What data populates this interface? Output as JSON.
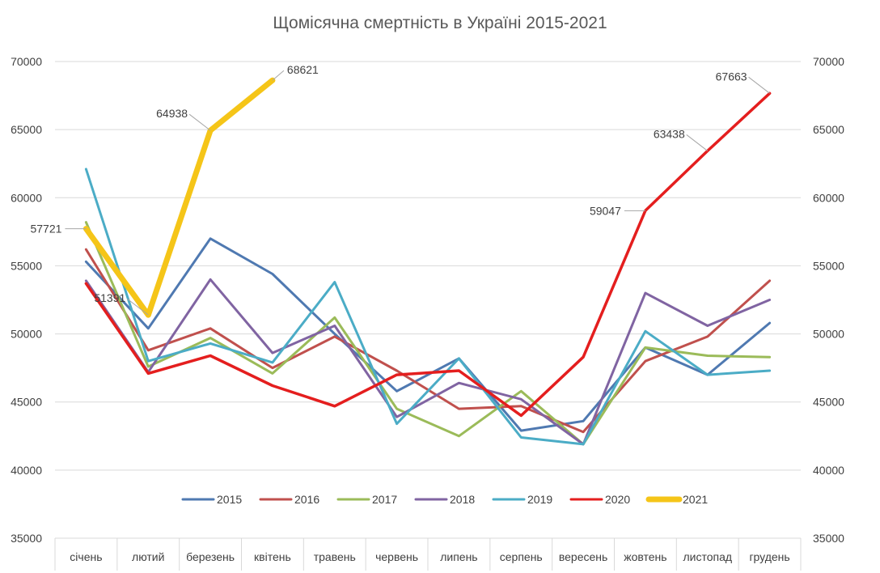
{
  "chart_data": {
    "type": "line",
    "title": "Щомісячна смертність в Україні 2015-2021",
    "categories": [
      "січень",
      "лютий",
      "березень",
      "квітень",
      "травень",
      "червень",
      "липень",
      "серпень",
      "вересень",
      "жовтень",
      "листопад",
      "грудень"
    ],
    "ylim": [
      35000,
      70000
    ],
    "yticks": [
      35000,
      40000,
      45000,
      50000,
      55000,
      60000,
      65000,
      70000
    ],
    "secondary_axis": true,
    "grid": true,
    "legend_position": "bottom",
    "series": [
      {
        "name": "2015",
        "color": "#4f79b1",
        "values": [
          55300,
          50400,
          57000,
          54400,
          50000,
          45800,
          48200,
          42900,
          43600,
          49000,
          47000,
          50800
        ]
      },
      {
        "name": "2016",
        "color": "#c0504d",
        "values": [
          56200,
          48800,
          50400,
          47500,
          49800,
          47300,
          44500,
          44700,
          42800,
          48000,
          49800,
          53900
        ]
      },
      {
        "name": "2017",
        "color": "#9bbb59",
        "values": [
          58200,
          47600,
          49700,
          47100,
          51200,
          44500,
          42500,
          45800,
          41900,
          49000,
          48400,
          48300
        ]
      },
      {
        "name": "2018",
        "color": "#8064a2",
        "values": [
          53900,
          47200,
          54000,
          48600,
          50600,
          43900,
          46400,
          45200,
          41900,
          53000,
          50600,
          52500
        ]
      },
      {
        "name": "2019",
        "color": "#4bacc6",
        "values": [
          62100,
          48000,
          49300,
          47900,
          53800,
          43400,
          48200,
          42400,
          41900,
          50200,
          47000,
          47300
        ]
      },
      {
        "name": "2020",
        "color": "#e41e1e",
        "values": [
          53700,
          47100,
          48400,
          46200,
          44700,
          47000,
          47300,
          44000,
          48300,
          59047,
          63438,
          67663
        ]
      },
      {
        "name": "2021",
        "color": "#f5c518",
        "values": [
          57721,
          51391,
          64938,
          68621,
          null,
          null,
          null,
          null,
          null,
          null,
          null,
          null
        ]
      }
    ],
    "data_labels": [
      {
        "series": "2021",
        "index": 0,
        "text": "57721",
        "pos": "left"
      },
      {
        "series": "2021",
        "index": 1,
        "text": "51391",
        "pos": "upper-left"
      },
      {
        "series": "2021",
        "index": 2,
        "text": "64938",
        "pos": "upper-left"
      },
      {
        "series": "2021",
        "index": 3,
        "text": "68621",
        "pos": "upper-right"
      },
      {
        "series": "2020",
        "index": 9,
        "text": "59047",
        "pos": "left"
      },
      {
        "series": "2020",
        "index": 10,
        "text": "63438",
        "pos": "upper-left"
      },
      {
        "series": "2020",
        "index": 11,
        "text": "67663",
        "pos": "upper-left"
      }
    ]
  }
}
